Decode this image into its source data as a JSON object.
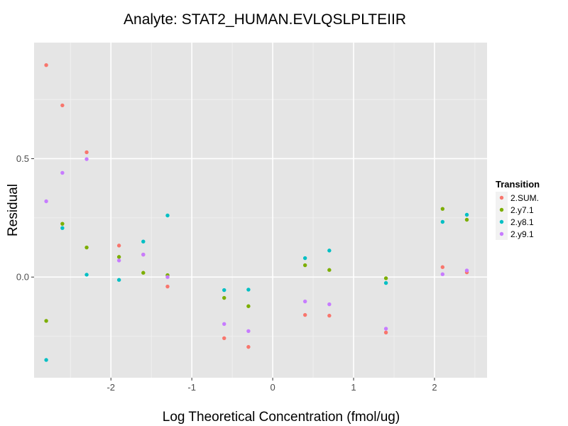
{
  "chart_data": {
    "type": "scatter",
    "title": "Analyte: STAT2_HUMAN.EVLQSLPLTEIIR",
    "xlabel": "Log Theoretical Concentration (fmol/ug)",
    "ylabel": "Residual",
    "xlim": [
      -2.95,
      2.65
    ],
    "ylim": [
      -0.425,
      0.99
    ],
    "x_ticks": [
      -2,
      -1,
      0,
      1,
      2
    ],
    "x_tick_labels": [
      "-2",
      "-1",
      "0",
      "1",
      "2"
    ],
    "y_ticks": [
      0.0,
      0.5
    ],
    "y_tick_labels": [
      "0.0",
      "0.5"
    ],
    "grid": true,
    "legend": {
      "title": "Transition",
      "position": "right"
    },
    "series": [
      {
        "name": "2.SUM.",
        "color": "#F8766D",
        "points": [
          [
            -2.8,
            0.895
          ],
          [
            -2.6,
            0.725
          ],
          [
            -2.3,
            0.527
          ],
          [
            -1.9,
            0.133
          ],
          [
            -1.6,
            0.095
          ],
          [
            -1.3,
            -0.04
          ],
          [
            -0.6,
            -0.258
          ],
          [
            -0.3,
            -0.295
          ],
          [
            0.4,
            -0.16
          ],
          [
            0.7,
            -0.163
          ],
          [
            1.4,
            -0.234
          ],
          [
            2.1,
            0.042
          ],
          [
            2.4,
            0.02
          ]
        ]
      },
      {
        "name": "2.y7.1",
        "color": "#7CAE00",
        "points": [
          [
            -2.8,
            -0.185
          ],
          [
            -2.6,
            0.225
          ],
          [
            -2.3,
            0.125
          ],
          [
            -1.9,
            0.085
          ],
          [
            -1.6,
            0.018
          ],
          [
            -1.3,
            0.008
          ],
          [
            -0.6,
            -0.088
          ],
          [
            -0.3,
            -0.123
          ],
          [
            0.4,
            0.05
          ],
          [
            0.7,
            0.03
          ],
          [
            1.4,
            -0.005
          ],
          [
            2.1,
            0.288
          ],
          [
            2.4,
            0.242
          ]
        ]
      },
      {
        "name": "2.y8.1",
        "color": "#00BFC4",
        "points": [
          [
            -2.8,
            -0.35
          ],
          [
            -2.6,
            0.207
          ],
          [
            -2.3,
            0.01
          ],
          [
            -1.9,
            -0.012
          ],
          [
            -1.6,
            0.15
          ],
          [
            -1.3,
            0.26
          ],
          [
            -0.6,
            -0.055
          ],
          [
            -0.3,
            -0.053
          ],
          [
            0.4,
            0.08
          ],
          [
            0.7,
            0.112
          ],
          [
            1.4,
            -0.025
          ],
          [
            2.1,
            0.233
          ],
          [
            2.4,
            0.263
          ]
        ]
      },
      {
        "name": "2.y9.1",
        "color": "#C77CFF",
        "points": [
          [
            -2.8,
            0.32
          ],
          [
            -2.6,
            0.44
          ],
          [
            -2.3,
            0.498
          ],
          [
            -1.9,
            0.07
          ],
          [
            -1.6,
            0.095
          ],
          [
            -1.3,
            0.0
          ],
          [
            -0.6,
            -0.198
          ],
          [
            -0.3,
            -0.228
          ],
          [
            0.4,
            -0.103
          ],
          [
            0.7,
            -0.115
          ],
          [
            1.4,
            -0.218
          ],
          [
            2.1,
            0.012
          ],
          [
            2.4,
            0.028
          ]
        ]
      }
    ]
  }
}
